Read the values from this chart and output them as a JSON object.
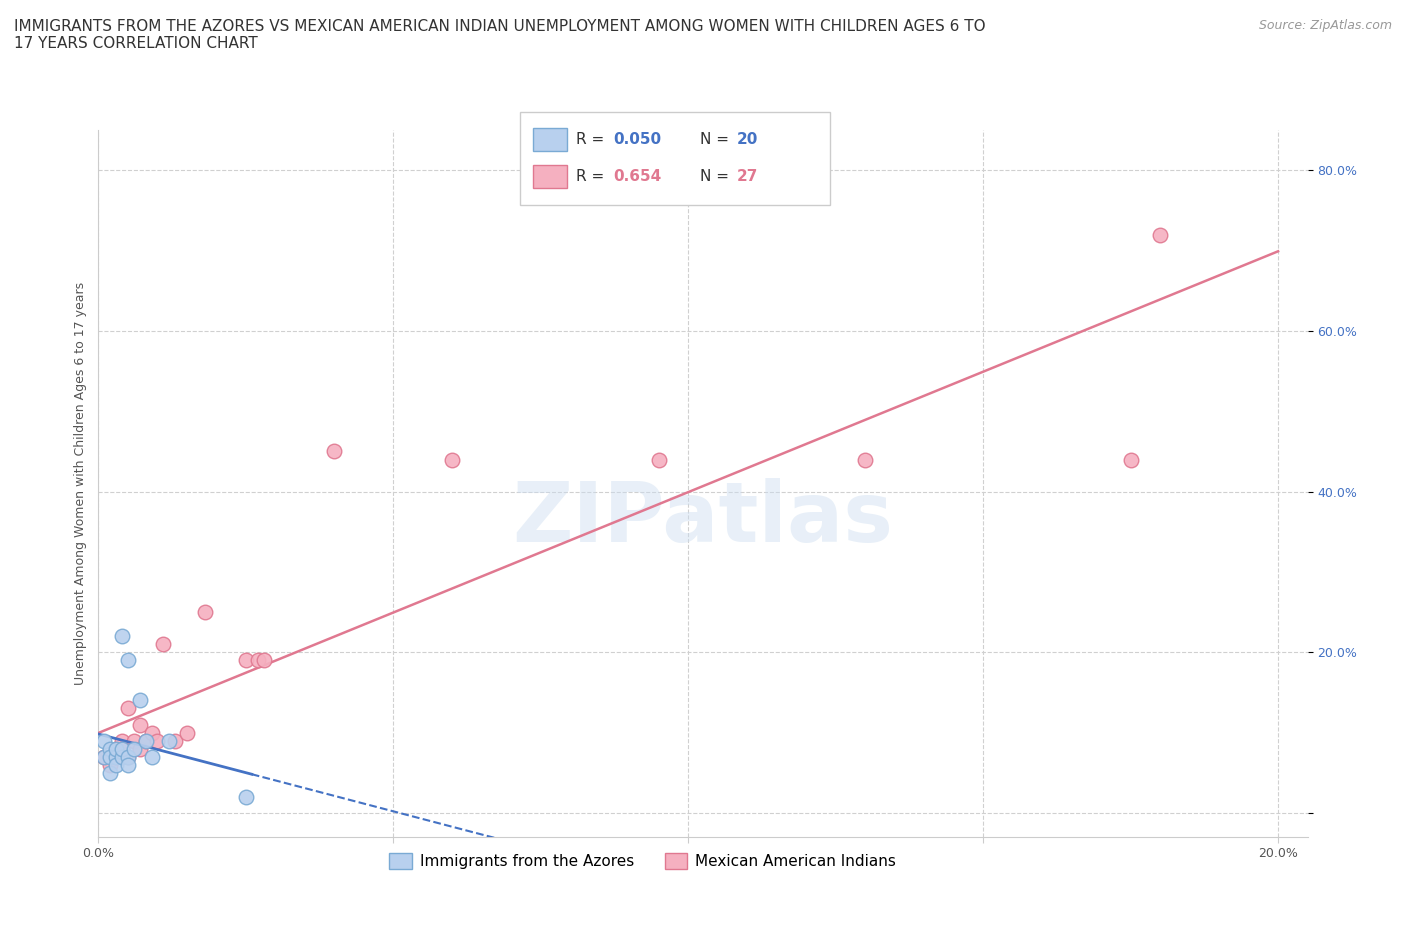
{
  "title": "IMMIGRANTS FROM THE AZORES VS MEXICAN AMERICAN INDIAN UNEMPLOYMENT AMONG WOMEN WITH CHILDREN AGES 6 TO\n17 YEARS CORRELATION CHART",
  "source": "Source: ZipAtlas.com",
  "ylabel": "Unemployment Among Women with Children Ages 6 to 17 years",
  "xlim": [
    0.0,
    0.205
  ],
  "ylim": [
    -0.03,
    0.85
  ],
  "xticks": [
    0.0,
    0.05,
    0.1,
    0.15,
    0.2
  ],
  "yticks": [
    0.0,
    0.2,
    0.4,
    0.6,
    0.8
  ],
  "grid_color": "#d0d0d0",
  "background_color": "#ffffff",
  "azores_color": "#b8d0ee",
  "azores_edge_color": "#7aaad4",
  "mexican_color": "#f5b0c0",
  "mexican_edge_color": "#e07890",
  "azores_R": "0.050",
  "azores_N": "20",
  "mexican_R": "0.654",
  "mexican_N": "27",
  "legend_label_azores": "Immigrants from the Azores",
  "legend_label_mexican": "Mexican American Indians",
  "watermark": "ZIPatlas",
  "azores_x": [
    0.001,
    0.001,
    0.002,
    0.002,
    0.002,
    0.003,
    0.003,
    0.003,
    0.004,
    0.004,
    0.004,
    0.005,
    0.005,
    0.005,
    0.006,
    0.007,
    0.008,
    0.009,
    0.012,
    0.025
  ],
  "azores_y": [
    0.07,
    0.09,
    0.08,
    0.07,
    0.05,
    0.07,
    0.08,
    0.06,
    0.07,
    0.08,
    0.22,
    0.19,
    0.07,
    0.06,
    0.08,
    0.14,
    0.09,
    0.07,
    0.09,
    0.02
  ],
  "mexican_x": [
    0.001,
    0.002,
    0.003,
    0.003,
    0.004,
    0.004,
    0.005,
    0.005,
    0.006,
    0.007,
    0.007,
    0.008,
    0.009,
    0.01,
    0.011,
    0.013,
    0.015,
    0.018,
    0.025,
    0.027,
    0.028,
    0.04,
    0.06,
    0.095,
    0.13,
    0.175,
    0.18
  ],
  "mexican_y": [
    0.07,
    0.06,
    0.08,
    0.07,
    0.09,
    0.08,
    0.07,
    0.13,
    0.09,
    0.08,
    0.11,
    0.09,
    0.1,
    0.09,
    0.21,
    0.09,
    0.1,
    0.25,
    0.19,
    0.19,
    0.19,
    0.45,
    0.44,
    0.44,
    0.44,
    0.44,
    0.72
  ],
  "azores_line_color": "#4472c4",
  "mexican_line_color": "#e07890",
  "title_fontsize": 11,
  "axis_label_fontsize": 9,
  "tick_fontsize": 9,
  "legend_fontsize": 11,
  "az_line_x_end": 0.025,
  "mex_line_intercept": -0.05,
  "mex_line_slope": 3.3
}
